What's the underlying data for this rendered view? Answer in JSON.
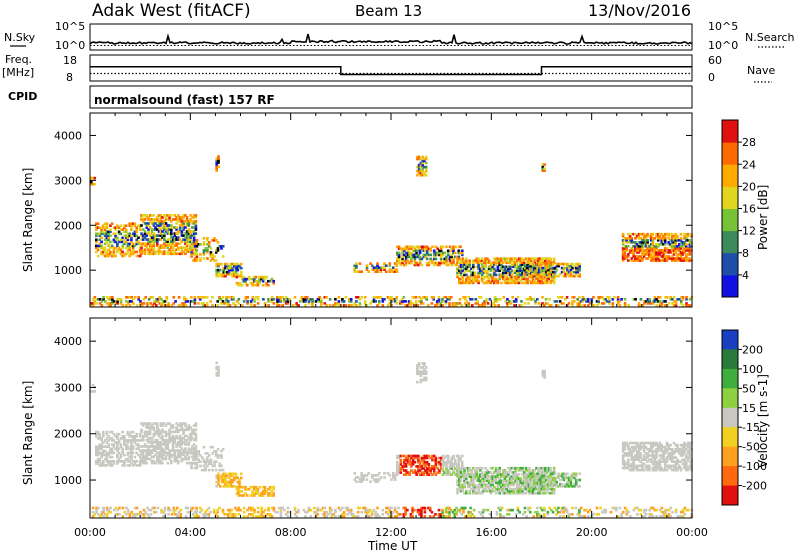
{
  "header": {
    "station": "Adak West (fitACF)",
    "beam": "Beam 13",
    "date": "13/Nov/2016"
  },
  "strip_labels": {
    "nsky": "N.Sky",
    "nsky_top": "10^5",
    "nsky_bottom": "10^0",
    "nsearch": "N.Search",
    "nsearch_top": "10^5",
    "nsearch_bottom": "10^0",
    "freq": "Freq.",
    "freq_unit": "[MHz]",
    "freq_top": "18",
    "freq_bottom": "8",
    "nave": "Nave",
    "nave_top": "60",
    "nave_bottom": "0",
    "cpid": "CPID",
    "mode": "normalsound (fast) 157 RF"
  },
  "chart_data": [
    {
      "type": "line",
      "name": "noise-strip",
      "x_range_hours": [
        0,
        24
      ],
      "series": [
        {
          "name": "N.Sky",
          "level": "low, with sporadic spikes"
        },
        {
          "name": "N.Search",
          "level": "low, dotted"
        }
      ]
    },
    {
      "type": "line",
      "name": "frequency-strip",
      "x_range_hours": [
        0,
        24
      ],
      "series": [
        {
          "name": "Freq. [MHz]",
          "x": [
            0,
            10,
            10,
            18,
            18,
            24
          ],
          "y": [
            13.5,
            13.5,
            10.5,
            10.5,
            13.5,
            13.5
          ]
        },
        {
          "name": "Nave",
          "x": [
            0,
            24
          ],
          "y": [
            20,
            20
          ]
        }
      ]
    },
    {
      "type": "heatmap",
      "name": "power-panel",
      "ylabel": "Slant Range [km]",
      "ylim": [
        180,
        4500
      ],
      "yticks": [
        "1000",
        "2000",
        "3000",
        "4000"
      ],
      "colorbar": {
        "label": "Power [dB]",
        "ticks": [
          "4",
          "8",
          "12",
          "16",
          "20",
          "24",
          "28"
        ],
        "colors": [
          "#1010e0",
          "#1f4fa8",
          "#3d8a5a",
          "#77c236",
          "#e0d620",
          "#ffaa00",
          "#ff6a00",
          "#e01010"
        ]
      }
    },
    {
      "type": "heatmap",
      "name": "velocity-panel",
      "ylabel": "Slant Range [km]",
      "ylim": [
        180,
        4500
      ],
      "yticks": [
        "1000",
        "2000",
        "3000",
        "4000"
      ],
      "colorbar": {
        "label": "Velocity [m s-1]",
        "ticks": [
          "200",
          "100",
          "50",
          "15",
          "-15",
          "-50",
          "-100",
          "-200"
        ],
        "colors": [
          "#1a3fc0",
          "#2a7a3a",
          "#3fae3f",
          "#8fd040",
          "#c8c8c0",
          "#f0d020",
          "#ffa020",
          "#ff6a10",
          "#e01010"
        ]
      }
    }
  ],
  "x_axis": {
    "ticks": [
      "00:00",
      "04:00",
      "08:00",
      "12:00",
      "16:00",
      "20:00",
      "00:00"
    ],
    "label": "Time UT"
  }
}
